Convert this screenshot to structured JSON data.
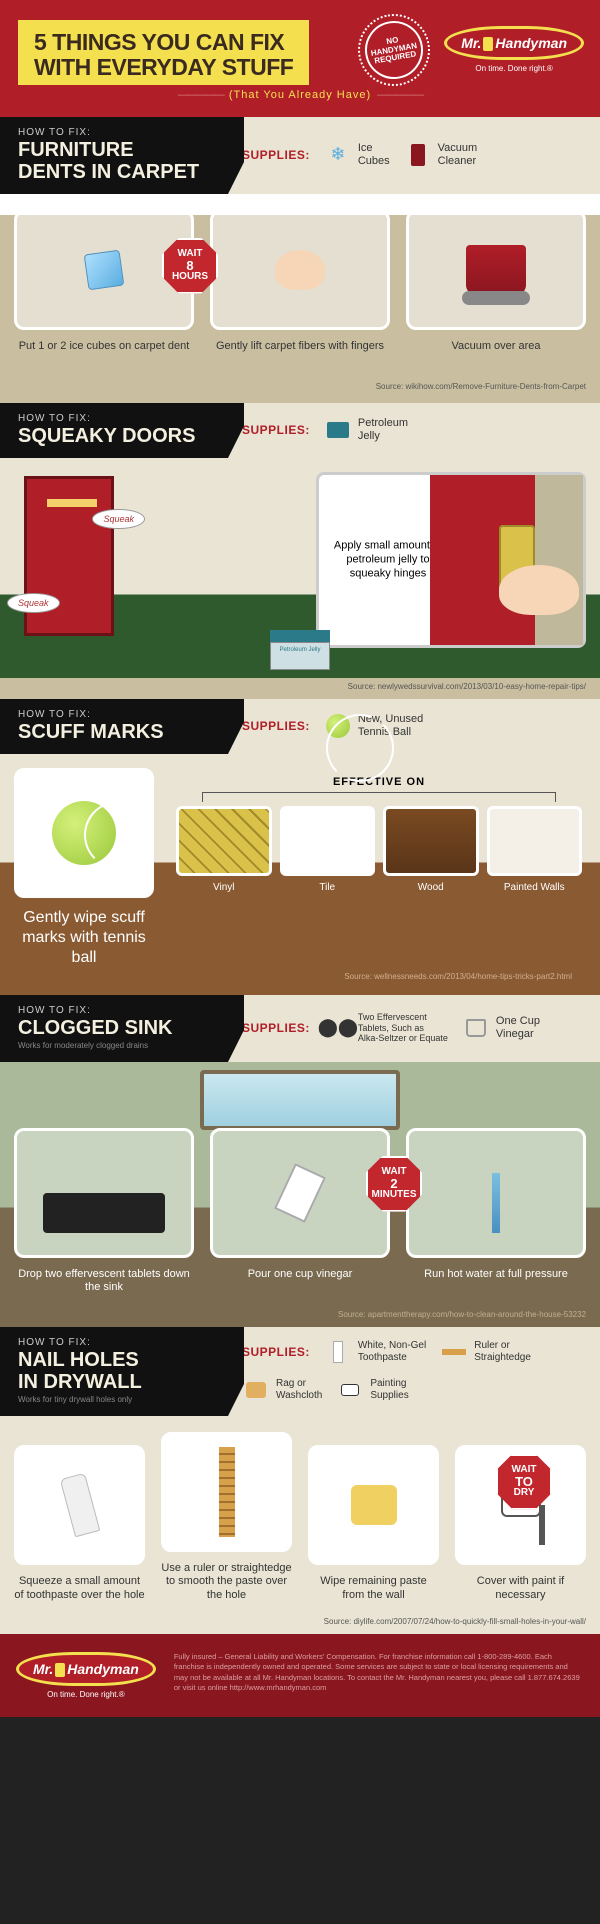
{
  "colors": {
    "brand_red": "#b01e28",
    "dark_red": "#8a1620",
    "yellow": "#f4e04e",
    "beige": "#e9e4d4",
    "black": "#111111",
    "carpet": "#c9bfa0",
    "grass": "#2e5a2e",
    "wood": "#8a5a32",
    "sage": "#a9b99a",
    "earth": "#7a6a50"
  },
  "header": {
    "title_line1": "5 THINGS YOU CAN FIX",
    "title_line2": "WITH EVERYDAY STUFF",
    "subtitle": "(That You Already Have)",
    "badge_l1": "NO",
    "badge_l2": "HANDYMAN",
    "badge_l3": "REQUIRED",
    "logo_a": "Mr.",
    "logo_b": "Handyman",
    "tagline": "On time. Done right.®"
  },
  "common": {
    "howto": "HOW TO FIX:",
    "supplies": "SUPPLIES:",
    "wait": "WAIT"
  },
  "sections": [
    {
      "title_l1": "FURNITURE",
      "title_l2": "DENTS IN CARPET",
      "supplies": [
        {
          "icon": "ice-icon",
          "label": "Ice\nCubes"
        },
        {
          "icon": "vacuum-icon",
          "label": "Vacuum\nCleaner"
        }
      ],
      "wait_time": "8",
      "wait_unit": "HOURS",
      "steps": [
        "Put 1 or 2 ice cubes on carpet dent",
        "Gently lift carpet fibers with fingers",
        "Vacuum over area"
      ],
      "source": "Source: wikihow.com/Remove-Furniture-Dents-from-Carpet"
    },
    {
      "title_l1": "SQUEAKY DOORS",
      "supplies": [
        {
          "icon": "jelly-icon",
          "label": "Petroleum\nJelly"
        }
      ],
      "speech": "Squeak",
      "instruction": "Apply small amount of petroleum jelly to squeaky hinges",
      "jelly_label": "Petroleum Jelly",
      "source": "Source: newlywedssurvival.com/2013/03/10-easy-home-repair-tips/"
    },
    {
      "title_l1": "SCUFF MARKS",
      "supplies": [
        {
          "icon": "ball-icon",
          "label": "New, Unused\nTennis Ball"
        }
      ],
      "main_caption": "Gently wipe scuff marks with tennis ball",
      "effective_label": "EFFECTIVE ON",
      "surfaces": [
        "Vinyl",
        "Tile",
        "Wood",
        "Painted Walls"
      ],
      "surface_styles": [
        "repeating-linear-gradient(45deg,#d9c14a 0 10px,#a08a2a 10px 12px),repeating-linear-gradient(-45deg,transparent 0 10px,#a08a2a 10px 12px)",
        "linear-gradient(#fff,#fff)",
        "linear-gradient(#7a4a22,#5a3518)",
        "linear-gradient(#f4f0e8,#f4f0e8)"
      ],
      "source": "Source: wellnessneeds.com/2013/04/home-tips-tricks-part2.html"
    },
    {
      "title_l1": "CLOGGED SINK",
      "subtitle": "Works for moderately clogged drains",
      "supplies": [
        {
          "icon": "tablet-icon",
          "label": "Two Effervescent\nTablets, Such as\nAlka-Seltzer or Equate"
        },
        {
          "icon": "cup-icon",
          "label": "One Cup\nVinegar"
        }
      ],
      "wait_time": "2",
      "wait_unit": "MINUTES",
      "steps": [
        "Drop two effervescent tablets down the sink",
        "Pour one cup vinegar",
        "Run hot water at full pressure"
      ],
      "source": "Source: apartmenttherapy.com/how-to-clean-around-the-house-53232"
    },
    {
      "title_l1": "NAIL HOLES",
      "title_l2": "IN DRYWALL",
      "subtitle": "Works for tiny drywall holes only",
      "supplies": [
        {
          "icon": "paste-icon",
          "label": "White, Non-Gel\nToothpaste"
        },
        {
          "icon": "rag-icon",
          "label": "Rag or\nWashcloth"
        },
        {
          "icon": "ruler-icon",
          "label": "Ruler or\nStraightedge"
        },
        {
          "icon": "paint-icon",
          "label": "Painting\nSupplies"
        }
      ],
      "wait_time": "TO",
      "wait_unit": "DRY",
      "wait_pre": "WAIT",
      "steps": [
        "Squeeze a small amount of toothpaste over the hole",
        "Use a ruler or straightedge to smooth the paste over the hole",
        "Wipe remaining paste from the wall",
        "Cover with paint if necessary"
      ],
      "source": "Source: diylife.com/2007/07/24/how-to-quickly-fill-small-holes-in-your-wall/"
    }
  ],
  "footer": {
    "text": "Fully insured – General Liability and Workers' Compensation. For franchise information call 1-800-289-4600. Each franchise is independently owned and operated. Some services are subject to state or local licensing requirements and may not be available at all Mr. Handyman locations. To contact the Mr. Handyman nearest you, please call 1.877.674.2639 or visit us online http://www.mrhandyman.com"
  }
}
